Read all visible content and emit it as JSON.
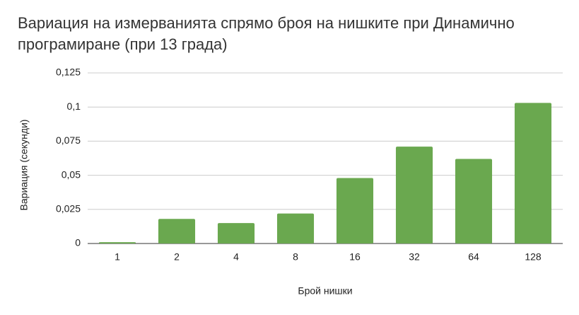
{
  "chart_data": {
    "type": "bar",
    "title": "Вариация на измерванията спрямо броя на нишките при Динамично програмиране (при 13 града)",
    "x_label": "Брой нишки",
    "y_label": "Вариация (секунди)",
    "categories": [
      "1",
      "2",
      "4",
      "8",
      "16",
      "32",
      "64",
      "128"
    ],
    "values": [
      0.001,
      0.018,
      0.015,
      0.022,
      0.048,
      0.071,
      0.062,
      0.103
    ],
    "color": "#6aa84f",
    "ylim": [
      0,
      0.125
    ],
    "yticks": [
      0,
      {
        "value": 0.025,
        "label": "0,025"
      },
      {
        "value": 0.05,
        "label": "0,05"
      },
      {
        "value": 0.075,
        "label": "0,075"
      },
      {
        "value": 0.1,
        "label": "0,1"
      },
      {
        "value": 0.125,
        "label": "0,125"
      }
    ],
    "grid": true
  }
}
